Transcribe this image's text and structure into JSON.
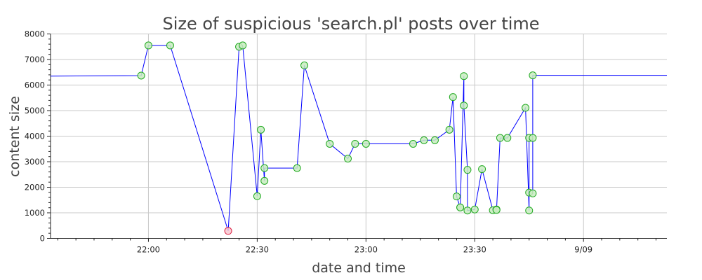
{
  "chart_data": {
    "type": "line",
    "title": "Size of suspicious 'search.pl' posts over time",
    "xlabel": "date and time",
    "ylabel": "content size",
    "xlim": [
      "21:33",
      "24:23"
    ],
    "ylim": [
      0,
      8000
    ],
    "yticks": [
      0,
      1000,
      2000,
      3000,
      4000,
      5000,
      6000,
      7000,
      8000
    ],
    "xticks": [
      {
        "t": "22:00",
        "label": "22:00"
      },
      {
        "t": "22:30",
        "label": "22:30"
      },
      {
        "t": "23:00",
        "label": "23:00"
      },
      {
        "t": "23:30",
        "label": "23:30"
      },
      {
        "t": "24:00",
        "label": "9/09"
      }
    ],
    "grid": true,
    "line_color": "#0000ff",
    "marker_fill": "#c8ecc0",
    "marker_edge": "#22aa22",
    "highlight_fill": "#f8c8d0",
    "highlight_edge": "#dd2244",
    "series": [
      {
        "values": [
          {
            "t": "21:33",
            "y": 6350,
            "marker": false
          },
          {
            "t": "21:58",
            "y": 6370
          },
          {
            "t": "22:00",
            "y": 7550
          },
          {
            "t": "22:06",
            "y": 7550
          },
          {
            "t": "22:22",
            "y": 290,
            "highlight": true
          },
          {
            "t": "22:25",
            "y": 7500
          },
          {
            "t": "22:26",
            "y": 7550
          },
          {
            "t": "22:30",
            "y": 1650
          },
          {
            "t": "22:31",
            "y": 4250
          },
          {
            "t": "22:32",
            "y": 2250
          },
          {
            "t": "22:32",
            "y": 2750
          },
          {
            "t": "22:41",
            "y": 2750
          },
          {
            "t": "22:43",
            "y": 6770
          },
          {
            "t": "22:50",
            "y": 3700
          },
          {
            "t": "22:55",
            "y": 3120
          },
          {
            "t": "22:57",
            "y": 3700
          },
          {
            "t": "23:00",
            "y": 3700
          },
          {
            "t": "23:13",
            "y": 3700
          },
          {
            "t": "23:16",
            "y": 3840
          },
          {
            "t": "23:19",
            "y": 3840
          },
          {
            "t": "23:23",
            "y": 4250
          },
          {
            "t": "23:24",
            "y": 5530
          },
          {
            "t": "23:25",
            "y": 1640
          },
          {
            "t": "23:26",
            "y": 1210
          },
          {
            "t": "23:26",
            "y": 1210
          },
          {
            "t": "23:27",
            "y": 6350
          },
          {
            "t": "23:27",
            "y": 5200
          },
          {
            "t": "23:28",
            "y": 2680
          },
          {
            "t": "23:28",
            "y": 1090
          },
          {
            "t": "23:30",
            "y": 1130
          },
          {
            "t": "23:32",
            "y": 2710
          },
          {
            "t": "23:35",
            "y": 1100
          },
          {
            "t": "23:36",
            "y": 1130
          },
          {
            "t": "23:36",
            "y": 1110
          },
          {
            "t": "23:37",
            "y": 3930
          },
          {
            "t": "23:39",
            "y": 3930
          },
          {
            "t": "23:44",
            "y": 5110
          },
          {
            "t": "23:45",
            "y": 1090
          },
          {
            "t": "23:45",
            "y": 3930
          },
          {
            "t": "23:45",
            "y": 1790
          },
          {
            "t": "23:46",
            "y": 1760
          },
          {
            "t": "23:46",
            "y": 3930
          },
          {
            "t": "23:46",
            "y": 6380
          },
          {
            "t": "24:23",
            "y": 6380,
            "marker": false
          }
        ]
      }
    ]
  }
}
